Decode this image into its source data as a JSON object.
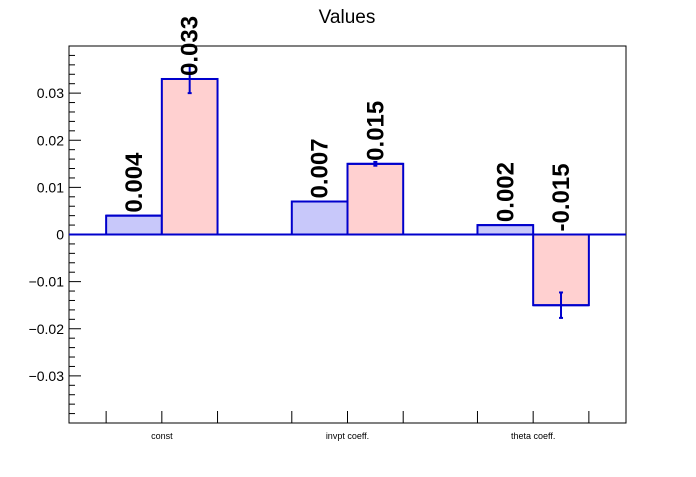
{
  "chart_data": {
    "type": "bar",
    "title": "Values",
    "xlabel": "",
    "ylabel": "",
    "categories": [
      "const",
      "invpt coeff.",
      "theta coeff."
    ],
    "ylim": [
      -0.04,
      0.04
    ],
    "yticks": [
      -0.03,
      -0.02,
      -0.01,
      0,
      0.01,
      0.02,
      0.03
    ],
    "ytick_labels": [
      "−0.03",
      "−0.02",
      "−0.01",
      "0",
      "0.01",
      "0.02",
      "0.03"
    ],
    "grid": false,
    "legend": "none",
    "series": [
      {
        "values": [
          0.004,
          0.007,
          0.002
        ],
        "labels": [
          "0.004",
          "0.007",
          "0.002"
        ],
        "errors": [
          null,
          null,
          null
        ],
        "fill": "#c8c8fa",
        "stroke": "#0000cc"
      },
      {
        "values": [
          0.033,
          0.015,
          -0.015
        ],
        "labels": [
          "0.033",
          "0.015",
          "-0.015"
        ],
        "errors": [
          0.003,
          0.0004,
          0.0027
        ],
        "fill": "#ffd0d0",
        "stroke": "#0000cc"
      }
    ]
  }
}
